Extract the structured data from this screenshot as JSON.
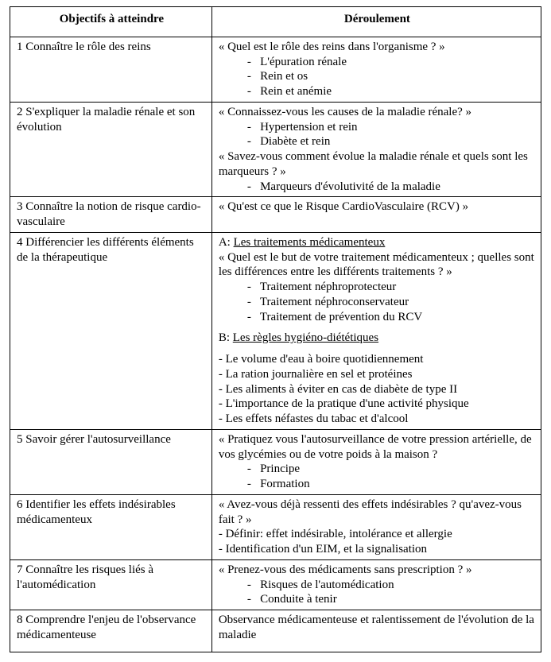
{
  "headers": {
    "left": "Objectifs à atteindre",
    "right": "Déroulement"
  },
  "rows": [
    {
      "objective": "1 Connaître le rôle des reins",
      "content": {
        "q1": "« Quel est le rôle des reins dans l'organisme ? »",
        "bullets1": [
          "L'épuration rénale",
          "Rein et os",
          "Rein et anémie"
        ]
      }
    },
    {
      "objective": "2 S'expliquer la maladie rénale et son évolution",
      "content": {
        "q1": "« Connaissez-vous les causes de la maladie rénale? »",
        "bullets1": [
          "Hypertension et rein",
          "Diabète et rein"
        ],
        "q2": "« Savez-vous comment évolue la maladie rénale et quels sont les marqueurs ? »",
        "bullets2": [
          "Marqueurs d'évolutivité de la maladie"
        ]
      }
    },
    {
      "objective": "3 Connaître la notion de risque cardio-vasculaire",
      "content": {
        "q1": "« Qu'est ce que le Risque CardioVasculaire (RCV) »"
      }
    },
    {
      "objective": "4 Différencier les différents éléments de la thérapeutique",
      "content": {
        "sectA_prefix": "A: ",
        "sectA_label": "Les traitements médicamenteux",
        "q1": "« Quel est le but de votre traitement médicamenteux ;  quelles sont les différences entre les différents traitements ? »",
        "bullets1": [
          "Traitement néphroprotecteur",
          "Traitement néphroconservateur",
          "Traitement de prévention du RCV"
        ],
        "sectB_prefix": "B: ",
        "sectB_label": "Les règles hygiéno-diététiques",
        "bullets2": [
          "Le volume d'eau à boire quotidiennement",
          "La ration journalière en sel et protéines",
          "Les aliments à éviter en cas de diabète de type II",
          "L'importance de la pratique d'une activité physique",
          "Les effets néfastes du tabac et d'alcool"
        ]
      }
    },
    {
      "objective": "5 Savoir gérer l'autosurveillance",
      "content": {
        "q1": "« Pratiquez vous l'autosurveillance de votre pression artérielle, de vos glycémies ou de votre poids à la maison ?",
        "bullets1": [
          "Principe",
          "Formation"
        ]
      }
    },
    {
      "objective": "6 Identifier les effets indésirables médicamenteux",
      "content": {
        "q1": "« Avez-vous déjà ressenti des effets indésirables ? qu'avez-vous fait ? »",
        "lines": [
          "Définir: effet indésirable, intolérance et allergie",
          "Identification d'un EIM, et la signalisation"
        ]
      }
    },
    {
      "objective": "7 Connaître les risques liés à l'automédication",
      "content": {
        "q1": "« Prenez-vous des médicaments sans prescription ? »",
        "bullets1": [
          "Risques de l'automédication",
          "Conduite à tenir"
        ]
      }
    },
    {
      "objective": "8 Comprendre l'enjeu de l'observance médicamenteuse",
      "content": {
        "text": "Observance médicamenteuse et ralentissement de l'évolution de la maladie"
      }
    }
  ]
}
